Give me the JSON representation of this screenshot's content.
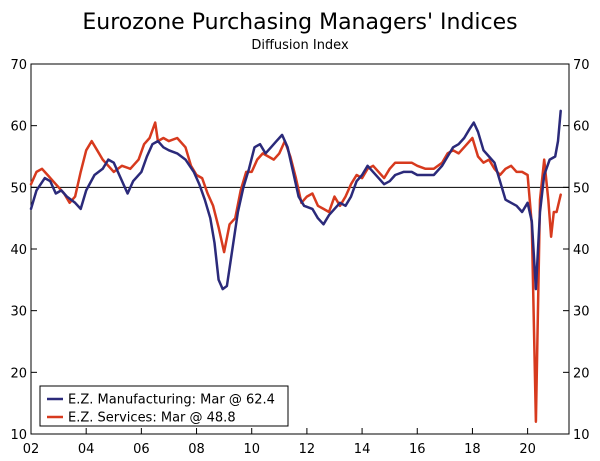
{
  "chart_data": {
    "type": "line",
    "title": "Eurozone Purchasing Managers' Indices",
    "subtitle": "Diffusion Index",
    "xlabel": "",
    "ylabel": "",
    "xlim": [
      2002.0,
      2021.5
    ],
    "ylim": [
      10,
      70
    ],
    "reference_line": 50,
    "x_tick_values": [
      2002,
      2004,
      2006,
      2008,
      2010,
      2012,
      2014,
      2016,
      2018,
      2020
    ],
    "x_tick_labels": [
      "02",
      "04",
      "06",
      "08",
      "10",
      "12",
      "14",
      "16",
      "18",
      "20"
    ],
    "y_ticks": [
      10,
      20,
      30,
      40,
      50,
      60,
      70
    ],
    "legend_position": "bottom-left",
    "series": [
      {
        "name": "E.Z. Manufacturing: Mar @ 62.4",
        "color": "#2b2a7a",
        "points": [
          [
            2002.0,
            46.5
          ],
          [
            2002.2,
            49.5
          ],
          [
            2002.5,
            51.5
          ],
          [
            2002.7,
            51.0
          ],
          [
            2002.9,
            49.0
          ],
          [
            2003.1,
            49.5
          ],
          [
            2003.3,
            48.5
          ],
          [
            2003.6,
            47.5
          ],
          [
            2003.8,
            46.5
          ],
          [
            2004.0,
            49.5
          ],
          [
            2004.3,
            52.0
          ],
          [
            2004.6,
            53.0
          ],
          [
            2004.8,
            54.5
          ],
          [
            2005.0,
            54.0
          ],
          [
            2005.2,
            52.0
          ],
          [
            2005.5,
            49.0
          ],
          [
            2005.7,
            51.0
          ],
          [
            2006.0,
            52.5
          ],
          [
            2006.2,
            55.0
          ],
          [
            2006.4,
            57.0
          ],
          [
            2006.6,
            57.5
          ],
          [
            2006.8,
            56.5
          ],
          [
            2007.0,
            56.0
          ],
          [
            2007.3,
            55.5
          ],
          [
            2007.6,
            54.5
          ],
          [
            2007.9,
            52.5
          ],
          [
            2008.1,
            50.5
          ],
          [
            2008.3,
            48.0
          ],
          [
            2008.5,
            45.0
          ],
          [
            2008.65,
            41.0
          ],
          [
            2008.8,
            35.0
          ],
          [
            2008.95,
            33.5
          ],
          [
            2009.1,
            34.0
          ],
          [
            2009.3,
            40.0
          ],
          [
            2009.5,
            46.0
          ],
          [
            2009.7,
            50.0
          ],
          [
            2009.9,
            53.0
          ],
          [
            2010.1,
            56.5
          ],
          [
            2010.3,
            57.0
          ],
          [
            2010.5,
            55.5
          ],
          [
            2010.7,
            56.5
          ],
          [
            2010.9,
            57.5
          ],
          [
            2011.1,
            58.5
          ],
          [
            2011.3,
            56.5
          ],
          [
            2011.5,
            52.5
          ],
          [
            2011.7,
            48.5
          ],
          [
            2011.9,
            47.0
          ],
          [
            2012.2,
            46.5
          ],
          [
            2012.4,
            45.0
          ],
          [
            2012.6,
            44.0
          ],
          [
            2012.8,
            45.5
          ],
          [
            2013.0,
            46.5
          ],
          [
            2013.2,
            47.5
          ],
          [
            2013.4,
            47.0
          ],
          [
            2013.6,
            48.5
          ],
          [
            2013.8,
            51.0
          ],
          [
            2014.0,
            52.0
          ],
          [
            2014.2,
            53.5
          ],
          [
            2014.4,
            52.5
          ],
          [
            2014.6,
            51.5
          ],
          [
            2014.8,
            50.5
          ],
          [
            2015.0,
            51.0
          ],
          [
            2015.2,
            52.0
          ],
          [
            2015.5,
            52.5
          ],
          [
            2015.8,
            52.5
          ],
          [
            2016.0,
            52.0
          ],
          [
            2016.3,
            52.0
          ],
          [
            2016.6,
            52.0
          ],
          [
            2016.9,
            53.5
          ],
          [
            2017.1,
            55.0
          ],
          [
            2017.3,
            56.5
          ],
          [
            2017.5,
            57.0
          ],
          [
            2017.7,
            58.0
          ],
          [
            2017.9,
            59.5
          ],
          [
            2018.05,
            60.5
          ],
          [
            2018.2,
            59.0
          ],
          [
            2018.4,
            56.0
          ],
          [
            2018.6,
            55.0
          ],
          [
            2018.8,
            54.0
          ],
          [
            2019.0,
            51.0
          ],
          [
            2019.2,
            48.0
          ],
          [
            2019.4,
            47.5
          ],
          [
            2019.6,
            47.0
          ],
          [
            2019.8,
            46.0
          ],
          [
            2020.0,
            47.5
          ],
          [
            2020.15,
            44.5
          ],
          [
            2020.3,
            33.5
          ],
          [
            2020.45,
            46.0
          ],
          [
            2020.6,
            52.0
          ],
          [
            2020.8,
            54.5
          ],
          [
            2021.0,
            55.0
          ],
          [
            2021.1,
            57.5
          ],
          [
            2021.2,
            62.4
          ]
        ]
      },
      {
        "name": "E.Z. Services: Mar @ 48.8",
        "color": "#d73a1e",
        "points": [
          [
            2002.0,
            50.5
          ],
          [
            2002.2,
            52.5
          ],
          [
            2002.4,
            53.0
          ],
          [
            2002.6,
            52.0
          ],
          [
            2002.8,
            51.0
          ],
          [
            2003.0,
            50.0
          ],
          [
            2003.2,
            49.0
          ],
          [
            2003.4,
            47.5
          ],
          [
            2003.6,
            48.5
          ],
          [
            2003.8,
            52.5
          ],
          [
            2004.0,
            56.0
          ],
          [
            2004.2,
            57.5
          ],
          [
            2004.4,
            56.0
          ],
          [
            2004.6,
            54.5
          ],
          [
            2004.8,
            53.5
          ],
          [
            2005.0,
            52.5
          ],
          [
            2005.3,
            53.5
          ],
          [
            2005.6,
            53.0
          ],
          [
            2005.9,
            54.5
          ],
          [
            2006.1,
            57.0
          ],
          [
            2006.3,
            58.0
          ],
          [
            2006.5,
            60.5
          ],
          [
            2006.6,
            57.5
          ],
          [
            2006.8,
            58.0
          ],
          [
            2007.0,
            57.5
          ],
          [
            2007.3,
            58.0
          ],
          [
            2007.6,
            56.5
          ],
          [
            2007.8,
            53.5
          ],
          [
            2008.0,
            52.0
          ],
          [
            2008.2,
            51.5
          ],
          [
            2008.4,
            49.0
          ],
          [
            2008.6,
            47.0
          ],
          [
            2008.8,
            43.5
          ],
          [
            2009.0,
            39.5
          ],
          [
            2009.2,
            44.0
          ],
          [
            2009.4,
            45.0
          ],
          [
            2009.6,
            49.5
          ],
          [
            2009.8,
            52.5
          ],
          [
            2010.0,
            52.5
          ],
          [
            2010.2,
            54.5
          ],
          [
            2010.4,
            55.5
          ],
          [
            2010.6,
            55.0
          ],
          [
            2010.8,
            54.5
          ],
          [
            2011.0,
            55.5
          ],
          [
            2011.2,
            57.5
          ],
          [
            2011.4,
            55.0
          ],
          [
            2011.6,
            51.5
          ],
          [
            2011.8,
            47.5
          ],
          [
            2012.0,
            48.5
          ],
          [
            2012.2,
            49.0
          ],
          [
            2012.4,
            47.0
          ],
          [
            2012.6,
            46.5
          ],
          [
            2012.8,
            46.0
          ],
          [
            2013.0,
            48.5
          ],
          [
            2013.2,
            47.0
          ],
          [
            2013.4,
            48.5
          ],
          [
            2013.6,
            50.5
          ],
          [
            2013.8,
            52.0
          ],
          [
            2014.0,
            51.5
          ],
          [
            2014.2,
            53.0
          ],
          [
            2014.4,
            53.5
          ],
          [
            2014.6,
            52.5
          ],
          [
            2014.8,
            51.5
          ],
          [
            2015.0,
            53.0
          ],
          [
            2015.2,
            54.0
          ],
          [
            2015.5,
            54.0
          ],
          [
            2015.8,
            54.0
          ],
          [
            2016.0,
            53.5
          ],
          [
            2016.3,
            53.0
          ],
          [
            2016.6,
            53.0
          ],
          [
            2016.9,
            54.0
          ],
          [
            2017.1,
            55.5
          ],
          [
            2017.3,
            56.0
          ],
          [
            2017.5,
            55.5
          ],
          [
            2017.8,
            57.0
          ],
          [
            2018.0,
            58.0
          ],
          [
            2018.2,
            55.0
          ],
          [
            2018.4,
            54.0
          ],
          [
            2018.6,
            54.5
          ],
          [
            2018.8,
            53.0
          ],
          [
            2019.0,
            52.0
          ],
          [
            2019.2,
            53.0
          ],
          [
            2019.4,
            53.5
          ],
          [
            2019.6,
            52.5
          ],
          [
            2019.8,
            52.5
          ],
          [
            2020.0,
            52.0
          ],
          [
            2020.15,
            44.0
          ],
          [
            2020.3,
            12.0
          ],
          [
            2020.45,
            48.0
          ],
          [
            2020.6,
            54.5
          ],
          [
            2020.75,
            48.0
          ],
          [
            2020.85,
            42.0
          ],
          [
            2020.95,
            46.0
          ],
          [
            2021.05,
            46.0
          ],
          [
            2021.2,
            48.8
          ]
        ]
      }
    ]
  }
}
